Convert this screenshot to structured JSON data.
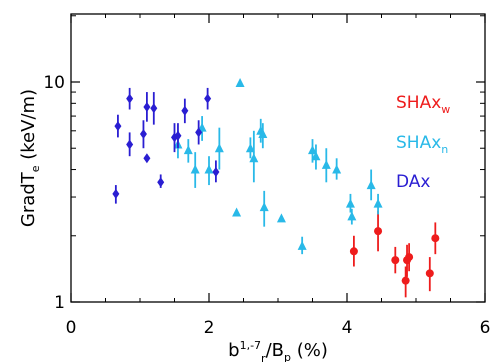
{
  "chart_data": {
    "type": "scatter",
    "title": "",
    "xlabel": {
      "main": "b",
      "sup": "1,-7",
      "sub": "r",
      "mid": "/B",
      "sub2": "p",
      "tail": " (%)"
    },
    "ylabel": {
      "main": "GradT",
      "sub": "e",
      "tail": " (keV/m)"
    },
    "xlim": [
      0,
      6
    ],
    "ylim": [
      1,
      20
    ],
    "yscale": "log",
    "xticks": [
      "0",
      "2",
      "4",
      "6"
    ],
    "yticks": [
      "1",
      "10"
    ],
    "grid": false,
    "legend_position": "top-right",
    "series": [
      {
        "name": "SHAx",
        "name_sub": "w",
        "marker": "circle",
        "color": "#ee1c1c",
        "points": [
          {
            "x": 4.1,
            "y": 1.7,
            "lo": 1.45,
            "hi": 2.0
          },
          {
            "x": 4.45,
            "y": 2.1,
            "lo": 1.7,
            "hi": 2.6
          },
          {
            "x": 4.7,
            "y": 1.55,
            "lo": 1.35,
            "hi": 1.78
          },
          {
            "x": 4.85,
            "y": 1.25,
            "lo": 1.05,
            "hi": 1.45
          },
          {
            "x": 4.87,
            "y": 1.55,
            "lo": 1.3,
            "hi": 1.82
          },
          {
            "x": 4.9,
            "y": 1.6,
            "lo": 1.38,
            "hi": 1.85
          },
          {
            "x": 5.2,
            "y": 1.35,
            "lo": 1.12,
            "hi": 1.6
          },
          {
            "x": 5.28,
            "y": 1.95,
            "lo": 1.65,
            "hi": 2.3
          }
        ]
      },
      {
        "name": "SHAx",
        "name_sub": "n",
        "marker": "triangle",
        "color": "#29b9e8",
        "points": [
          {
            "x": 1.55,
            "y": 5.2,
            "lo": 4.5,
            "hi": 6.0
          },
          {
            "x": 1.7,
            "y": 4.9,
            "lo": 4.3,
            "hi": 5.5
          },
          {
            "x": 1.8,
            "y": 4.0,
            "lo": 3.3,
            "hi": 4.8
          },
          {
            "x": 1.9,
            "y": 6.2,
            "lo": 5.4,
            "hi": 7.0
          },
          {
            "x": 2.0,
            "y": 4.0,
            "lo": 3.4,
            "hi": 4.6
          },
          {
            "x": 2.15,
            "y": 5.0,
            "lo": 4.0,
            "hi": 6.2
          },
          {
            "x": 2.45,
            "y": 9.9,
            "lo": 9.9,
            "hi": 9.9
          },
          {
            "x": 2.4,
            "y": 2.55,
            "lo": 2.55,
            "hi": 2.55
          },
          {
            "x": 2.6,
            "y": 5.0,
            "lo": 4.5,
            "hi": 5.6
          },
          {
            "x": 2.65,
            "y": 4.5,
            "lo": 3.5,
            "hi": 6.0
          },
          {
            "x": 2.75,
            "y": 6.0,
            "lo": 5.3,
            "hi": 6.8
          },
          {
            "x": 2.78,
            "y": 5.8,
            "lo": 5.0,
            "hi": 6.5
          },
          {
            "x": 2.8,
            "y": 2.7,
            "lo": 2.2,
            "hi": 3.2
          },
          {
            "x": 3.05,
            "y": 2.4,
            "lo": 2.4,
            "hi": 2.4
          },
          {
            "x": 3.35,
            "y": 1.8,
            "lo": 1.65,
            "hi": 1.98
          },
          {
            "x": 3.5,
            "y": 4.9,
            "lo": 4.3,
            "hi": 5.5
          },
          {
            "x": 3.55,
            "y": 4.6,
            "lo": 4.0,
            "hi": 5.2
          },
          {
            "x": 3.7,
            "y": 4.2,
            "lo": 3.5,
            "hi": 5.0
          },
          {
            "x": 3.85,
            "y": 4.0,
            "lo": 3.6,
            "hi": 4.5
          },
          {
            "x": 4.05,
            "y": 2.8,
            "lo": 2.55,
            "hi": 3.1
          },
          {
            "x": 4.07,
            "y": 2.45,
            "lo": 2.25,
            "hi": 2.65
          },
          {
            "x": 4.35,
            "y": 3.4,
            "lo": 2.9,
            "hi": 4.0
          },
          {
            "x": 4.45,
            "y": 2.8,
            "lo": 2.5,
            "hi": 3.1
          }
        ]
      },
      {
        "name": "DAx",
        "name_sub": "",
        "marker": "diamond",
        "color": "#2a1ed2",
        "points": [
          {
            "x": 0.65,
            "y": 3.1,
            "lo": 2.8,
            "hi": 3.4
          },
          {
            "x": 0.68,
            "y": 6.3,
            "lo": 5.6,
            "hi": 7.1
          },
          {
            "x": 0.85,
            "y": 8.4,
            "lo": 7.5,
            "hi": 9.4
          },
          {
            "x": 0.85,
            "y": 5.2,
            "lo": 4.6,
            "hi": 5.9
          },
          {
            "x": 1.05,
            "y": 5.8,
            "lo": 5.0,
            "hi": 6.7
          },
          {
            "x": 1.1,
            "y": 7.7,
            "lo": 6.6,
            "hi": 9.0
          },
          {
            "x": 1.1,
            "y": 4.5,
            "lo": 4.5,
            "hi": 4.5
          },
          {
            "x": 1.2,
            "y": 7.6,
            "lo": 6.4,
            "hi": 9.0
          },
          {
            "x": 1.3,
            "y": 3.5,
            "lo": 3.3,
            "hi": 3.8
          },
          {
            "x": 1.5,
            "y": 5.6,
            "lo": 4.8,
            "hi": 6.5
          },
          {
            "x": 1.55,
            "y": 5.7,
            "lo": 5.0,
            "hi": 6.5
          },
          {
            "x": 1.65,
            "y": 7.4,
            "lo": 6.5,
            "hi": 8.4
          },
          {
            "x": 1.85,
            "y": 5.9,
            "lo": 5.2,
            "hi": 6.7
          },
          {
            "x": 1.98,
            "y": 8.4,
            "lo": 7.5,
            "hi": 9.4
          },
          {
            "x": 2.1,
            "y": 3.9,
            "lo": 3.5,
            "hi": 4.4
          }
        ]
      }
    ]
  }
}
